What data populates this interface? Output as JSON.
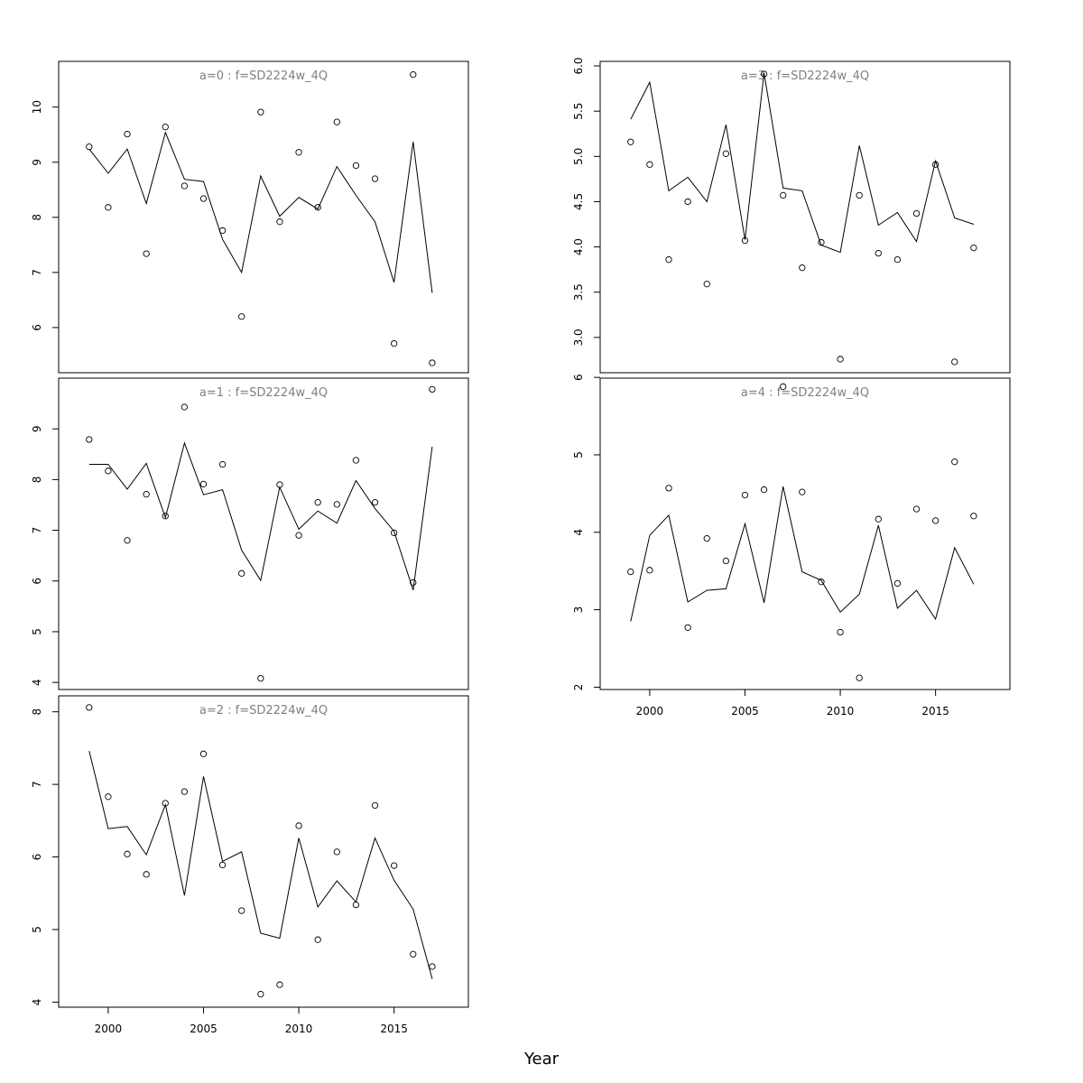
{
  "xlabel": "Year",
  "chart_data": [
    {
      "type": "scatter",
      "title": "a=0  :  f=SD2224w_4Q",
      "x": [
        1999,
        2000,
        2001,
        2002,
        2003,
        2004,
        2005,
        2006,
        2007,
        2008,
        2009,
        2010,
        2011,
        2012,
        2013,
        2014,
        2015,
        2016,
        2017
      ],
      "observed": [
        9.28,
        8.18,
        9.51,
        7.34,
        9.64,
        8.57,
        8.34,
        7.76,
        6.2,
        9.91,
        7.92,
        9.18,
        8.18,
        9.73,
        8.94,
        8.7,
        5.71,
        10.59,
        5.36
      ],
      "fitted": [
        9.24,
        8.8,
        9.24,
        8.25,
        9.54,
        8.69,
        8.65,
        7.6,
        7.0,
        8.75,
        8.02,
        8.36,
        8.15,
        8.92,
        8.4,
        7.92,
        6.82,
        9.37,
        6.63
      ],
      "xlim": [
        1997.4,
        2018.9
      ],
      "ylim": [
        5.18,
        10.83
      ],
      "yticks": [
        6,
        7,
        8,
        9,
        10
      ],
      "xticks": [
        2000,
        2005,
        2010,
        2015
      ],
      "show_xticks": false,
      "xtick_labels": [
        "2000",
        "2005",
        "2010",
        "2015"
      ]
    },
    {
      "type": "scatter",
      "title": "a=1  :  f=SD2224w_4Q",
      "x": [
        1999,
        2000,
        2001,
        2002,
        2003,
        2004,
        2005,
        2006,
        2007,
        2008,
        2009,
        2010,
        2011,
        2012,
        2013,
        2014,
        2015,
        2016,
        2017
      ],
      "observed": [
        8.79,
        8.17,
        6.8,
        7.71,
        7.28,
        9.43,
        7.91,
        8.3,
        6.15,
        4.08,
        7.9,
        6.9,
        7.55,
        7.51,
        8.38,
        7.55,
        6.95,
        5.97,
        9.78
      ],
      "fitted": [
        8.3,
        8.3,
        7.81,
        8.32,
        7.25,
        8.72,
        7.7,
        7.8,
        6.61,
        6.01,
        7.85,
        7.02,
        7.38,
        7.14,
        7.98,
        7.43,
        6.98,
        5.82,
        8.65
      ],
      "xlim": [
        1997.4,
        2018.9
      ],
      "ylim": [
        3.86,
        10.0
      ],
      "yticks": [
        4,
        5,
        6,
        7,
        8,
        9
      ],
      "xticks": [
        2000,
        2005,
        2010,
        2015
      ],
      "show_xticks": false,
      "xtick_labels": [
        "2000",
        "2005",
        "2010",
        "2015"
      ]
    },
    {
      "type": "scatter",
      "title": "a=2  :  f=SD2224w_4Q",
      "x": [
        1999,
        2000,
        2001,
        2002,
        2003,
        2004,
        2005,
        2006,
        2007,
        2008,
        2009,
        2010,
        2011,
        2012,
        2013,
        2014,
        2015,
        2016,
        2017
      ],
      "observed": [
        8.06,
        6.83,
        6.04,
        5.76,
        6.74,
        6.9,
        7.42,
        5.89,
        5.26,
        4.11,
        4.24,
        6.43,
        4.86,
        6.07,
        5.34,
        6.71,
        5.88,
        4.66,
        4.49
      ],
      "fitted": [
        7.46,
        6.39,
        6.42,
        6.03,
        6.72,
        5.47,
        7.11,
        5.94,
        6.07,
        4.95,
        4.88,
        6.26,
        5.31,
        5.67,
        5.38,
        6.26,
        5.68,
        5.28,
        4.32
      ],
      "xlim": [
        1997.4,
        2018.9
      ],
      "ylim": [
        3.93,
        8.22
      ],
      "yticks": [
        4,
        5,
        6,
        7,
        8
      ],
      "xticks": [
        2000,
        2005,
        2010,
        2015
      ],
      "show_xticks": true,
      "xtick_labels": [
        "2000",
        "2005",
        "2010",
        "2015"
      ]
    },
    {
      "type": "scatter",
      "title": "a=3  :  f=SD2224w_4Q",
      "x": [
        1999,
        2000,
        2001,
        2002,
        2003,
        2004,
        2005,
        2006,
        2007,
        2008,
        2009,
        2010,
        2011,
        2012,
        2013,
        2014,
        2015,
        2016,
        2017
      ],
      "observed": [
        5.16,
        4.91,
        3.86,
        4.5,
        3.59,
        5.03,
        4.07,
        5.91,
        4.57,
        3.77,
        4.05,
        2.76,
        4.57,
        3.93,
        3.86,
        4.37,
        4.91,
        2.73,
        3.99
      ],
      "fitted": [
        5.41,
        5.82,
        4.62,
        4.77,
        4.5,
        5.35,
        4.08,
        5.92,
        4.65,
        4.62,
        4.02,
        3.94,
        5.12,
        4.24,
        4.38,
        4.06,
        4.95,
        4.32,
        4.25
      ],
      "xlim": [
        1997.4,
        2018.9
      ],
      "ylim": [
        2.61,
        6.05
      ],
      "yticks": [
        3.0,
        3.5,
        4.0,
        4.5,
        5.0,
        5.5,
        6.0
      ],
      "xticks": [
        2000,
        2005,
        2010,
        2015
      ],
      "show_xticks": false,
      "xtick_labels": [
        "2000",
        "2005",
        "2010",
        "2015"
      ]
    },
    {
      "type": "scatter",
      "title": "a=4  :  f=SD2224w_4Q",
      "x": [
        1999,
        2000,
        2001,
        2002,
        2003,
        2004,
        2005,
        2006,
        2007,
        2008,
        2009,
        2010,
        2011,
        2012,
        2013,
        2014,
        2015,
        2016,
        2017
      ],
      "observed": [
        3.49,
        3.51,
        4.57,
        2.77,
        3.92,
        3.63,
        4.48,
        4.55,
        5.88,
        4.52,
        3.36,
        2.71,
        2.12,
        4.17,
        3.34,
        4.3,
        4.15,
        4.91,
        4.21
      ],
      "fitted": [
        2.85,
        3.96,
        4.22,
        3.1,
        3.25,
        3.27,
        4.11,
        3.09,
        4.59,
        3.49,
        3.38,
        2.97,
        3.2,
        4.09,
        3.02,
        3.25,
        2.88,
        3.8,
        3.33
      ],
      "xlim": [
        1997.4,
        2018.9
      ],
      "ylim": [
        1.97,
        5.99
      ],
      "yticks": [
        2,
        3,
        4,
        5,
        6
      ],
      "xticks": [
        2000,
        2005,
        2010,
        2015
      ],
      "show_xticks": true,
      "xtick_labels": [
        "2000",
        "2005",
        "2010",
        "2015"
      ]
    }
  ]
}
